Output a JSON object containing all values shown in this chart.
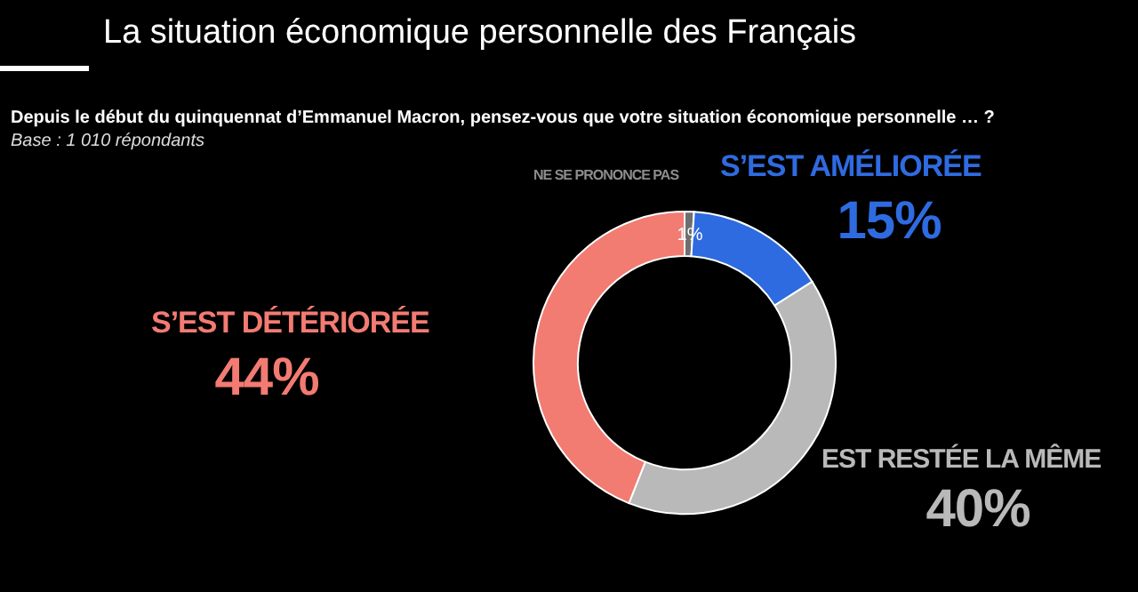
{
  "chart_data": {
    "type": "donut",
    "title": "La situation économique personnelle des Français",
    "subtitle": "Depuis le début du quinquennat d’Emmanuel Macron, pensez-vous que votre situation économique personnelle … ?",
    "annotations": [
      "Base : 1 010 répondants"
    ],
    "categories": [
      "NE SE PRONONCE PAS",
      "S’EST AMÉLIORÉE",
      "EST RESTÉE LA MÊME",
      "S’EST DÉTÉRIORÉE"
    ],
    "values": [
      1,
      15,
      40,
      44
    ],
    "value_labels": [
      "1%",
      "15%",
      "40%",
      "44%"
    ],
    "colors": [
      "#6e6e6e",
      "#2f6be0",
      "#b9b9b9",
      "#f27b72"
    ]
  }
}
